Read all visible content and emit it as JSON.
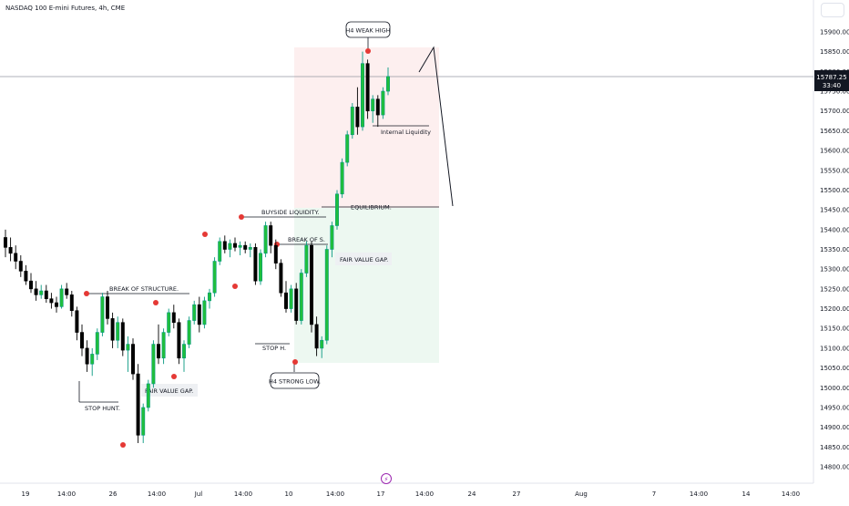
{
  "header": {
    "title": "NASDAQ 100 E-mini Futures, 4h, CME"
  },
  "price_scale": {
    "last_price": "15787.25",
    "countdown": "33:40"
  },
  "annotations": {
    "weak_high": "H4 WEAK HIGH",
    "strong_low": "H4 STRONG LOW.",
    "internal_liquidity": "Internal Liquidity",
    "equilibrium": "EQUILIBRIUM.",
    "buyside_liquidity": "BUYSIDE LIQUIDITY.",
    "break_of_s": "BREAK OF S.",
    "fair_value_gap_upper": "FAIR VALUE GAP.",
    "fair_value_gap_lower": "FAIR VALUE GAP.",
    "break_of_structure": "BREAK OF STRUCTURE.",
    "stop_hunt": "STOP HUNT.",
    "stop_h": "STOP H."
  },
  "colors": {
    "up": "#089981",
    "up_fill": "#1fbf3c",
    "down": "#000000",
    "swing_point": "#e53935",
    "premium_zone": "#fdecec",
    "discount_zone": "#eaf7ef",
    "annotation_line": "#131722"
  },
  "chart_data": {
    "type": "candlestick",
    "symbol": "NASDAQ 100 E-mini Futures",
    "timeframe": "4h",
    "exchange": "CME",
    "y_ticks": [
      15900,
      15850,
      15800,
      15750,
      15700,
      15650,
      15600,
      15550,
      15500,
      15450,
      15400,
      15350,
      15300,
      15250,
      15200,
      15150,
      15100,
      15050,
      15000,
      14950,
      14900,
      14850,
      14800
    ],
    "ylim": [
      14780,
      15930
    ],
    "x_tick_labels": [
      "19",
      "14:00",
      "26",
      "14:00",
      "Jul",
      "14:00",
      "10",
      "14:00",
      "17",
      "14:00",
      "24",
      "27",
      "Aug",
      "7",
      "14:00",
      "14",
      "14:00"
    ],
    "last_price": 15787.25,
    "candles": [
      [
        15380,
        15400,
        15330,
        15355
      ],
      [
        15355,
        15380,
        15320,
        15340
      ],
      [
        15340,
        15360,
        15300,
        15320
      ],
      [
        15320,
        15335,
        15280,
        15295
      ],
      [
        15295,
        15310,
        15260,
        15270
      ],
      [
        15270,
        15290,
        15240,
        15250
      ],
      [
        15250,
        15270,
        15220,
        15235
      ],
      [
        15235,
        15260,
        15225,
        15245
      ],
      [
        15245,
        15260,
        15215,
        15225
      ],
      [
        15225,
        15240,
        15200,
        15215
      ],
      [
        15215,
        15230,
        15190,
        15205
      ],
      [
        15205,
        15260,
        15200,
        15250
      ],
      [
        15250,
        15265,
        15225,
        15235
      ],
      [
        15235,
        15245,
        15180,
        15195
      ],
      [
        15195,
        15205,
        15120,
        15140
      ],
      [
        15140,
        15160,
        15080,
        15100
      ],
      [
        15100,
        15120,
        15040,
        15060
      ],
      [
        15060,
        15100,
        15030,
        15085
      ],
      [
        15085,
        15150,
        15070,
        15140
      ],
      [
        15140,
        15240,
        15130,
        15230
      ],
      [
        15230,
        15245,
        15160,
        15175
      ],
      [
        15175,
        15190,
        15100,
        15120
      ],
      [
        15120,
        15180,
        15100,
        15165
      ],
      [
        15165,
        15175,
        15080,
        15095
      ],
      [
        15095,
        15130,
        15040,
        15110
      ],
      [
        15110,
        15125,
        15020,
        15035
      ],
      [
        15035,
        15060,
        14860,
        14880
      ],
      [
        14880,
        14960,
        14860,
        14950
      ],
      [
        14950,
        15020,
        14940,
        15010
      ],
      [
        15010,
        15120,
        15000,
        15110
      ],
      [
        15110,
        15160,
        15060,
        15075
      ],
      [
        15075,
        15150,
        15060,
        15140
      ],
      [
        15140,
        15200,
        15130,
        15190
      ],
      [
        15190,
        15210,
        15150,
        15165
      ],
      [
        15165,
        15175,
        15060,
        15075
      ],
      [
        15075,
        15120,
        15040,
        15110
      ],
      [
        15110,
        15180,
        15100,
        15170
      ],
      [
        15170,
        15220,
        15160,
        15210
      ],
      [
        15210,
        15230,
        15140,
        15160
      ],
      [
        15160,
        15230,
        15150,
        15220
      ],
      [
        15220,
        15250,
        15200,
        15240
      ],
      [
        15240,
        15330,
        15230,
        15320
      ],
      [
        15320,
        15380,
        15310,
        15370
      ],
      [
        15370,
        15385,
        15340,
        15350
      ],
      [
        15350,
        15375,
        15330,
        15365
      ],
      [
        15365,
        15380,
        15345,
        15355
      ],
      [
        15355,
        15370,
        15335,
        15360
      ],
      [
        15360,
        15370,
        15340,
        15350
      ],
      [
        15350,
        15365,
        15330,
        15355
      ],
      [
        15355,
        15365,
        15260,
        15270
      ],
      [
        15270,
        15350,
        15260,
        15340
      ],
      [
        15340,
        15420,
        15330,
        15410
      ],
      [
        15410,
        15420,
        15340,
        15360
      ],
      [
        15360,
        15375,
        15300,
        15315
      ],
      [
        15315,
        15325,
        15230,
        15240
      ],
      [
        15240,
        15270,
        15190,
        15200
      ],
      [
        15200,
        15260,
        15190,
        15250
      ],
      [
        15250,
        15265,
        15160,
        15170
      ],
      [
        15170,
        15300,
        15160,
        15290
      ],
      [
        15290,
        15370,
        15280,
        15360
      ],
      [
        15360,
        15370,
        15140,
        15160
      ],
      [
        15160,
        15180,
        15080,
        15100
      ],
      [
        15100,
        15130,
        15075,
        15120
      ],
      [
        15120,
        15360,
        15110,
        15350
      ],
      [
        15350,
        15420,
        15330,
        15410
      ],
      [
        15410,
        15500,
        15400,
        15490
      ],
      [
        15490,
        15580,
        15480,
        15570
      ],
      [
        15570,
        15650,
        15560,
        15640
      ],
      [
        15640,
        15720,
        15630,
        15710
      ],
      [
        15710,
        15760,
        15640,
        15660
      ],
      [
        15660,
        15850,
        15650,
        15820
      ],
      [
        15820,
        15830,
        15680,
        15700
      ],
      [
        15700,
        15740,
        15670,
        15730
      ],
      [
        15730,
        15740,
        15660,
        15690
      ],
      [
        15690,
        15760,
        15680,
        15750
      ],
      [
        15750,
        15810,
        15740,
        15787.25
      ]
    ]
  }
}
